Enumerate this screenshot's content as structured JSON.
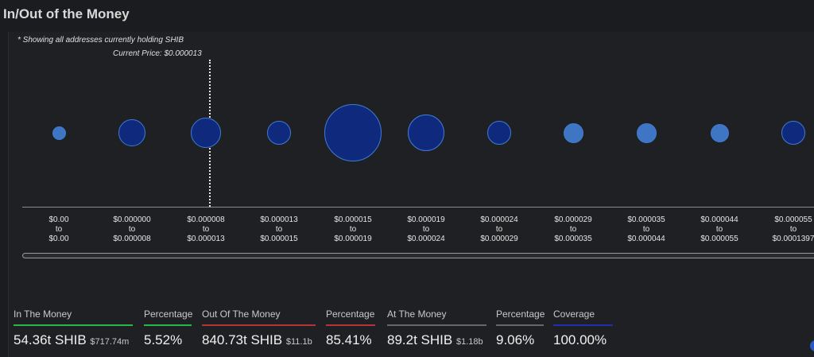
{
  "title": "In/Out of the Money",
  "note": "* Showing all addresses currently holding SHIB",
  "current_price": "Current Price: $0.000013",
  "colors": {
    "bubble_dark": "#0f2a7d",
    "bubble_light": "#3f76c4",
    "in_money": "#27b84a",
    "out_money": "#b33434",
    "at_money": "#666666",
    "coverage": "#1f2fb0"
  },
  "ranges": [
    {
      "from": "$0.00",
      "to": "$0.00",
      "shade": "light"
    },
    {
      "from": "$0.000000",
      "to": "$0.000008",
      "shade": "dark"
    },
    {
      "from": "$0.000008",
      "to": "$0.000013",
      "shade": "dark"
    },
    {
      "from": "$0.000013",
      "to": "$0.000015",
      "shade": "dark"
    },
    {
      "from": "$0.000015",
      "to": "$0.000019",
      "shade": "dark"
    },
    {
      "from": "$0.000019",
      "to": "$0.000024",
      "shade": "dark"
    },
    {
      "from": "$0.000024",
      "to": "$0.000029",
      "shade": "dark"
    },
    {
      "from": "$0.000029",
      "to": "$0.000035",
      "shade": "light"
    },
    {
      "from": "$0.000035",
      "to": "$0.000044",
      "shade": "light"
    },
    {
      "from": "$0.000044",
      "to": "$0.000055",
      "shade": "light"
    },
    {
      "from": "$0.000055",
      "to": "$0.0001397",
      "shade": "dark"
    }
  ],
  "to_word": "to",
  "stats": {
    "in_money_label": "In The Money",
    "in_money_value": "54.36t SHIB",
    "in_money_usd": "$717.74m",
    "in_pct_label": "Percentage",
    "in_pct_value": "5.52%",
    "out_money_label": "Out Of The Money",
    "out_money_value": "840.73t SHIB",
    "out_money_usd": "$11.1b",
    "out_pct_label": "Percentage",
    "out_pct_value": "85.41%",
    "at_money_label": "At The Money",
    "at_money_value": "89.2t SHIB",
    "at_money_usd": "$1.18b",
    "at_pct_label": "Percentage",
    "at_pct_value": "9.06%",
    "coverage_label": "Coverage",
    "coverage_value": "100.00%"
  }
}
